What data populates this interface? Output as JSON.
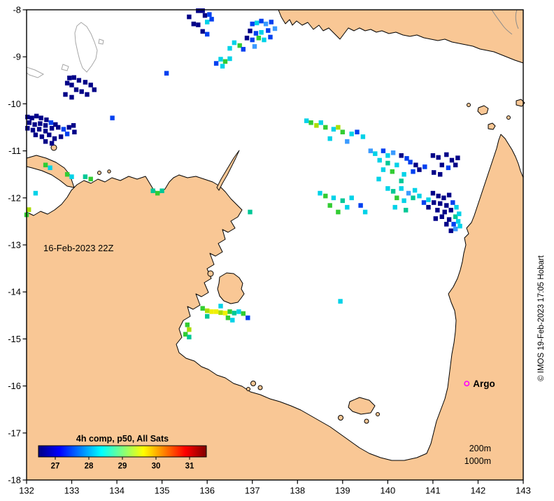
{
  "figure": {
    "date_overlay": "16-Feb-2023 22Z",
    "credit_vertical": "© IMOS 19-Feb-2023 17:05 Hobart",
    "argo": {
      "label": "Argo",
      "lon": 141.75,
      "lat": -15.95,
      "marker_color": "#FF00FF"
    },
    "depth_labels": {
      "d200": "200m",
      "d1000": "1000m"
    },
    "land_color": "#F9C795",
    "ocean_color": "#FFFFFF",
    "coast_color": "#000000",
    "foreign_coast_color": "#A6A6A6"
  },
  "axes": {
    "x_range": [
      132,
      143
    ],
    "y_range": [
      -18,
      -8
    ],
    "x_tick_values": [
      132,
      133,
      134,
      135,
      136,
      137,
      138,
      139,
      140,
      141,
      142,
      143
    ],
    "x_tick_labels": [
      "132",
      "133",
      "134",
      "135",
      "136",
      "137",
      "138",
      "139",
      "140",
      "141",
      "142",
      "143"
    ],
    "y_tick_values": [
      -8,
      -9,
      -10,
      -11,
      -12,
      -13,
      -14,
      -15,
      -16,
      -17,
      -18
    ],
    "y_tick_labels": [
      "-8",
      "-9",
      "-10",
      "-11",
      "-12",
      "-13",
      "-14",
      "-15",
      "-16",
      "-17",
      "-18"
    ]
  },
  "colorbar": {
    "title": "4h comp, p50, All Sats",
    "title_color": "#8B0000",
    "tick_labels": [
      "27",
      "28",
      "29",
      "30",
      "31"
    ],
    "tick_values": [
      27,
      28,
      29,
      30,
      31
    ],
    "value_range": [
      26.5,
      31.5
    ],
    "gradient_stops": [
      [
        0,
        "#000083"
      ],
      [
        0.125,
        "#0000FF"
      ],
      [
        0.375,
        "#00FFFF"
      ],
      [
        0.625,
        "#FFFF00"
      ],
      [
        0.875,
        "#FF0000"
      ],
      [
        1,
        "#800000"
      ]
    ]
  },
  "sst": {
    "palette": {
      "db": "#000088",
      "b": "#0040F0",
      "lb": "#3B9BFF",
      "c": "#00D2E8",
      "t": "#00C896",
      "g": "#33CC33",
      "yg": "#AADD00",
      "y": "#F0F000"
    },
    "cells": [
      [
        135.8,
        -8.02,
        "db"
      ],
      [
        135.9,
        -8.02,
        "db"
      ],
      [
        135.95,
        -8.12,
        "db"
      ],
      [
        136.05,
        -8.1,
        "b"
      ],
      [
        135.6,
        -8.15,
        "db"
      ],
      [
        135.7,
        -8.3,
        "db"
      ],
      [
        135.8,
        -8.32,
        "db"
      ],
      [
        136.0,
        -8.26,
        "c"
      ],
      [
        136.1,
        -8.2,
        "b"
      ],
      [
        135.9,
        -8.46,
        "db"
      ],
      [
        136.0,
        -8.52,
        "b"
      ],
      [
        137.0,
        -8.3,
        "b"
      ],
      [
        137.1,
        -8.28,
        "c"
      ],
      [
        137.2,
        -8.24,
        "b"
      ],
      [
        137.3,
        -8.3,
        "lb"
      ],
      [
        137.42,
        -8.26,
        "b"
      ],
      [
        136.95,
        -8.45,
        "db"
      ],
      [
        137.08,
        -8.5,
        "b"
      ],
      [
        137.2,
        -8.48,
        "c"
      ],
      [
        137.35,
        -8.44,
        "b"
      ],
      [
        137.5,
        -8.4,
        "lb"
      ],
      [
        136.88,
        -8.6,
        "db"
      ],
      [
        137.0,
        -8.64,
        "b"
      ],
      [
        137.14,
        -8.6,
        "g"
      ],
      [
        137.26,
        -8.64,
        "c"
      ],
      [
        137.4,
        -8.58,
        "b"
      ],
      [
        136.6,
        -8.7,
        "c"
      ],
      [
        136.72,
        -8.76,
        "g"
      ],
      [
        136.5,
        -8.82,
        "c"
      ],
      [
        136.8,
        -8.84,
        "b"
      ],
      [
        137.05,
        -8.78,
        "lb"
      ],
      [
        136.3,
        -9.05,
        "c"
      ],
      [
        136.4,
        -9.1,
        "g"
      ],
      [
        136.5,
        -9.04,
        "c"
      ],
      [
        136.34,
        -9.2,
        "c"
      ],
      [
        136.2,
        -9.14,
        "b"
      ],
      [
        135.1,
        -9.35,
        "b"
      ],
      [
        132.95,
        -9.45,
        "db"
      ],
      [
        133.05,
        -9.44,
        "db"
      ],
      [
        133.16,
        -9.5,
        "db"
      ],
      [
        132.9,
        -9.56,
        "db"
      ],
      [
        133.0,
        -9.6,
        "db"
      ],
      [
        133.3,
        -9.54,
        "db"
      ],
      [
        133.42,
        -9.6,
        "db"
      ],
      [
        133.1,
        -9.7,
        "db"
      ],
      [
        133.22,
        -9.74,
        "db"
      ],
      [
        132.86,
        -9.8,
        "db"
      ],
      [
        133.0,
        -9.86,
        "db"
      ],
      [
        133.5,
        -9.7,
        "db"
      ],
      [
        133.34,
        -9.8,
        "db"
      ],
      [
        132.02,
        -10.28,
        "db"
      ],
      [
        132.12,
        -10.3,
        "db"
      ],
      [
        132.22,
        -10.26,
        "db"
      ],
      [
        132.32,
        -10.3,
        "db"
      ],
      [
        132.44,
        -10.34,
        "db"
      ],
      [
        132.06,
        -10.4,
        "db"
      ],
      [
        132.18,
        -10.44,
        "db"
      ],
      [
        132.3,
        -10.42,
        "db"
      ],
      [
        132.42,
        -10.46,
        "db"
      ],
      [
        132.54,
        -10.4,
        "b"
      ],
      [
        132.64,
        -10.44,
        "db"
      ],
      [
        132.02,
        -10.52,
        "db"
      ],
      [
        132.14,
        -10.56,
        "db"
      ],
      [
        132.28,
        -10.54,
        "db"
      ],
      [
        132.42,
        -10.58,
        "db"
      ],
      [
        132.56,
        -10.52,
        "db"
      ],
      [
        132.7,
        -10.5,
        "db"
      ],
      [
        132.82,
        -10.54,
        "b"
      ],
      [
        132.94,
        -10.5,
        "db"
      ],
      [
        133.04,
        -10.46,
        "db"
      ],
      [
        132.2,
        -10.66,
        "db"
      ],
      [
        132.34,
        -10.7,
        "db"
      ],
      [
        132.5,
        -10.66,
        "db"
      ],
      [
        132.62,
        -10.74,
        "db"
      ],
      [
        132.76,
        -10.7,
        "db"
      ],
      [
        133.06,
        -10.6,
        "db"
      ],
      [
        132.42,
        -10.8,
        "db"
      ],
      [
        132.56,
        -10.84,
        "db"
      ],
      [
        132.9,
        -10.64,
        "b"
      ],
      [
        133.9,
        -10.3,
        "b"
      ],
      [
        132.42,
        -11.3,
        "g"
      ],
      [
        132.52,
        -11.36,
        "c"
      ],
      [
        132.9,
        -11.5,
        "g"
      ],
      [
        133.0,
        -11.55,
        "c"
      ],
      [
        133.3,
        -11.55,
        "t"
      ],
      [
        133.42,
        -11.6,
        "g"
      ],
      [
        132.2,
        -11.9,
        "c"
      ],
      [
        134.8,
        -11.85,
        "t"
      ],
      [
        134.9,
        -11.9,
        "g"
      ],
      [
        135.0,
        -11.85,
        "t"
      ],
      [
        132.05,
        -12.25,
        "yg"
      ],
      [
        132.0,
        -12.36,
        "g"
      ],
      [
        136.95,
        -12.3,
        "t"
      ],
      [
        138.2,
        -10.36,
        "c"
      ],
      [
        138.3,
        -10.4,
        "g"
      ],
      [
        138.42,
        -10.46,
        "yg"
      ],
      [
        138.52,
        -10.4,
        "c"
      ],
      [
        138.62,
        -10.5,
        "g"
      ],
      [
        138.8,
        -10.54,
        "c"
      ],
      [
        138.9,
        -10.5,
        "yg"
      ],
      [
        139.0,
        -10.6,
        "g"
      ],
      [
        139.2,
        -10.64,
        "c"
      ],
      [
        139.32,
        -10.6,
        "b"
      ],
      [
        139.45,
        -10.7,
        "c"
      ],
      [
        138.72,
        -10.74,
        "c"
      ],
      [
        139.1,
        -10.8,
        "lb"
      ],
      [
        139.62,
        -11.0,
        "lb"
      ],
      [
        139.72,
        -11.06,
        "c"
      ],
      [
        139.9,
        -11.0,
        "b"
      ],
      [
        140.0,
        -11.1,
        "c"
      ],
      [
        140.12,
        -11.04,
        "lb"
      ],
      [
        140.3,
        -11.1,
        "db"
      ],
      [
        140.42,
        -11.16,
        "b"
      ],
      [
        139.82,
        -11.2,
        "c"
      ],
      [
        140.0,
        -11.26,
        "t"
      ],
      [
        140.2,
        -11.3,
        "c"
      ],
      [
        140.5,
        -11.24,
        "b"
      ],
      [
        140.62,
        -11.3,
        "db"
      ],
      [
        139.9,
        -11.4,
        "c"
      ],
      [
        140.1,
        -11.44,
        "g"
      ],
      [
        140.36,
        -11.5,
        "c"
      ],
      [
        140.56,
        -11.44,
        "b"
      ],
      [
        140.7,
        -11.4,
        "db"
      ],
      [
        140.82,
        -11.34,
        "b"
      ],
      [
        141.0,
        -11.1,
        "db"
      ],
      [
        141.12,
        -11.14,
        "db"
      ],
      [
        141.3,
        -11.08,
        "db"
      ],
      [
        141.42,
        -11.2,
        "db"
      ],
      [
        141.55,
        -11.15,
        "db"
      ],
      [
        141.2,
        -11.3,
        "db"
      ],
      [
        141.34,
        -11.36,
        "b"
      ],
      [
        141.5,
        -11.3,
        "db"
      ],
      [
        141.02,
        -11.46,
        "db"
      ],
      [
        141.16,
        -11.5,
        "db"
      ],
      [
        139.8,
        -11.6,
        "c"
      ],
      [
        140.3,
        -11.64,
        "t"
      ],
      [
        140.0,
        -11.8,
        "c"
      ],
      [
        140.12,
        -11.86,
        "t"
      ],
      [
        140.3,
        -11.8,
        "c"
      ],
      [
        140.46,
        -11.9,
        "lb"
      ],
      [
        140.6,
        -11.84,
        "c"
      ],
      [
        140.2,
        -12.0,
        "g"
      ],
      [
        140.36,
        -12.06,
        "c"
      ],
      [
        140.56,
        -12.0,
        "t"
      ],
      [
        140.7,
        -11.96,
        "c"
      ],
      [
        140.8,
        -12.1,
        "b"
      ],
      [
        140.9,
        -12.04,
        "c"
      ],
      [
        140.16,
        -12.2,
        "c"
      ],
      [
        140.4,
        -12.26,
        "t"
      ],
      [
        140.9,
        -12.2,
        "db"
      ],
      [
        141.0,
        -11.9,
        "db"
      ],
      [
        141.12,
        -11.96,
        "db"
      ],
      [
        141.24,
        -12.0,
        "db"
      ],
      [
        141.36,
        -11.94,
        "db"
      ],
      [
        141.02,
        -12.1,
        "db"
      ],
      [
        141.16,
        -12.12,
        "db"
      ],
      [
        141.3,
        -12.16,
        "db"
      ],
      [
        141.44,
        -12.1,
        "b"
      ],
      [
        141.1,
        -12.26,
        "db"
      ],
      [
        141.26,
        -12.3,
        "db"
      ],
      [
        141.4,
        -12.26,
        "db"
      ],
      [
        141.52,
        -12.2,
        "c"
      ],
      [
        141.06,
        -12.44,
        "db"
      ],
      [
        141.2,
        -12.4,
        "db"
      ],
      [
        141.36,
        -12.46,
        "db"
      ],
      [
        141.5,
        -12.4,
        "t"
      ],
      [
        141.58,
        -12.34,
        "c"
      ],
      [
        141.3,
        -12.56,
        "db"
      ],
      [
        141.46,
        -12.56,
        "b"
      ],
      [
        141.56,
        -12.5,
        "c"
      ],
      [
        141.4,
        -12.7,
        "db"
      ],
      [
        141.5,
        -12.66,
        "lb"
      ],
      [
        141.6,
        -12.6,
        "c"
      ],
      [
        138.5,
        -11.9,
        "c"
      ],
      [
        138.62,
        -11.96,
        "g"
      ],
      [
        138.8,
        -12.0,
        "c"
      ],
      [
        139.0,
        -12.06,
        "t"
      ],
      [
        139.2,
        -12.0,
        "c"
      ],
      [
        138.72,
        -12.16,
        "g"
      ],
      [
        138.9,
        -12.3,
        "g"
      ],
      [
        139.1,
        -12.2,
        "c"
      ],
      [
        139.4,
        -12.16,
        "b"
      ],
      [
        139.5,
        -12.3,
        "c"
      ],
      [
        135.9,
        -14.35,
        "g"
      ],
      [
        136.0,
        -14.4,
        "yg"
      ],
      [
        136.1,
        -14.42,
        "y"
      ],
      [
        136.2,
        -14.42,
        "y"
      ],
      [
        136.3,
        -14.44,
        "yg"
      ],
      [
        136.4,
        -14.45,
        "y"
      ],
      [
        136.5,
        -14.42,
        "g"
      ],
      [
        136.6,
        -14.45,
        "t"
      ],
      [
        136.7,
        -14.42,
        "c"
      ],
      [
        136.8,
        -14.46,
        "g"
      ],
      [
        136.46,
        -14.55,
        "g"
      ],
      [
        136.56,
        -14.6,
        "c"
      ],
      [
        136.9,
        -14.55,
        "b"
      ],
      [
        136.3,
        -14.3,
        "c"
      ],
      [
        136.0,
        -14.52,
        "t"
      ],
      [
        135.56,
        -14.7,
        "g"
      ],
      [
        135.6,
        -14.8,
        "yg"
      ],
      [
        135.52,
        -14.9,
        "g"
      ],
      [
        135.6,
        -14.96,
        "t"
      ],
      [
        138.95,
        -14.2,
        "c"
      ]
    ]
  }
}
